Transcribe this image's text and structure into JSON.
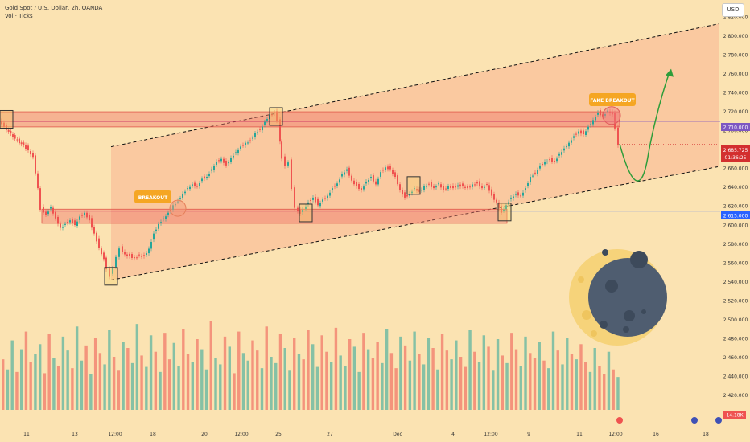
{
  "header": {
    "symbol_title": "Gold Spot / U.S. Dollar, 2h, OANDA",
    "indicator": "Vol · Ticks",
    "currency": "USD"
  },
  "annotations": {
    "breakout": "BREAKOUT",
    "fake_breakout": "FAKE BREAKOUT"
  },
  "price_markers": {
    "upper_level": "2,710.000",
    "lower_level": "2,615.000",
    "current_price": "2,685.725",
    "countdown": "01:36:25",
    "volume": "14.18K"
  },
  "colors": {
    "background": "#fbe3b2",
    "up_candle": "#26a69a",
    "down_candle": "#ef5350",
    "zone_fill": "#f8a88a",
    "resistance_line": "#c2185b",
    "upper_marker": "#7e57c2",
    "lower_marker": "#2962ff",
    "current_marker": "#d32f2f",
    "projection": "#2e9d3a"
  },
  "chart_data": {
    "type": "candlestick",
    "title": "Gold Spot / U.S. Dollar, 2h, OANDA",
    "y_ticks": [
      2820,
      2800,
      2780,
      2760,
      2740,
      2720,
      2700,
      2680,
      2660,
      2640,
      2620,
      2600,
      2580,
      2560,
      2540,
      2520,
      2500,
      2480,
      2460,
      2440,
      2420
    ],
    "ylim": [
      2409,
      2828
    ],
    "x_tick_labels": [
      "11",
      "13",
      "12:00",
      "18",
      "20",
      "12:00",
      "25",
      "27",
      "Dec",
      "4",
      "12:00",
      "9",
      "11",
      "12:00",
      "16",
      "18"
    ],
    "price_path": [
      [
        0,
        2712
      ],
      [
        6,
        2705
      ],
      [
        14,
        2697
      ],
      [
        22,
        2690
      ],
      [
        30,
        2685
      ],
      [
        36,
        2680
      ],
      [
        42,
        2673
      ],
      [
        48,
        2640
      ],
      [
        52,
        2618
      ],
      [
        58,
        2612
      ],
      [
        64,
        2620
      ],
      [
        70,
        2608
      ],
      [
        76,
        2598
      ],
      [
        82,
        2602
      ],
      [
        88,
        2606
      ],
      [
        94,
        2601
      ],
      [
        100,
        2610
      ],
      [
        106,
        2614
      ],
      [
        112,
        2606
      ],
      [
        118,
        2592
      ],
      [
        124,
        2577
      ],
      [
        130,
        2565
      ],
      [
        134,
        2555
      ],
      [
        138,
        2547
      ],
      [
        142,
        2556
      ],
      [
        146,
        2568
      ],
      [
        150,
        2577
      ],
      [
        156,
        2570
      ],
      [
        162,
        2568
      ],
      [
        168,
        2566
      ],
      [
        174,
        2569
      ],
      [
        180,
        2568
      ],
      [
        186,
        2576
      ],
      [
        192,
        2592
      ],
      [
        198,
        2602
      ],
      [
        204,
        2608
      ],
      [
        210,
        2614
      ],
      [
        216,
        2622
      ],
      [
        222,
        2626
      ],
      [
        228,
        2634
      ],
      [
        234,
        2640
      ],
      [
        240,
        2644
      ],
      [
        246,
        2642
      ],
      [
        252,
        2650
      ],
      [
        258,
        2652
      ],
      [
        264,
        2660
      ],
      [
        270,
        2668
      ],
      [
        276,
        2671
      ],
      [
        282,
        2664
      ],
      [
        288,
        2672
      ],
      [
        294,
        2678
      ],
      [
        300,
        2684
      ],
      [
        306,
        2688
      ],
      [
        312,
        2690
      ],
      [
        318,
        2698
      ],
      [
        324,
        2702
      ],
      [
        330,
        2710
      ],
      [
        336,
        2718
      ],
      [
        342,
        2719
      ],
      [
        346,
        2712
      ],
      [
        348,
        2690
      ],
      [
        352,
        2672
      ],
      [
        356,
        2664
      ],
      [
        360,
        2668
      ],
      [
        364,
        2640
      ],
      [
        368,
        2620
      ],
      [
        374,
        2613
      ],
      [
        378,
        2618
      ],
      [
        384,
        2625
      ],
      [
        390,
        2630
      ],
      [
        396,
        2622
      ],
      [
        402,
        2628
      ],
      [
        408,
        2632
      ],
      [
        414,
        2640
      ],
      [
        420,
        2645
      ],
      [
        426,
        2655
      ],
      [
        432,
        2660
      ],
      [
        438,
        2648
      ],
      [
        444,
        2642
      ],
      [
        450,
        2638
      ],
      [
        456,
        2647
      ],
      [
        462,
        2652
      ],
      [
        468,
        2644
      ],
      [
        474,
        2657
      ],
      [
        480,
        2662
      ],
      [
        486,
        2660
      ],
      [
        492,
        2652
      ],
      [
        498,
        2638
      ],
      [
        504,
        2630
      ],
      [
        510,
        2634
      ],
      [
        516,
        2640
      ],
      [
        522,
        2636
      ],
      [
        528,
        2642
      ],
      [
        534,
        2644
      ],
      [
        540,
        2640
      ],
      [
        546,
        2645
      ],
      [
        552,
        2638
      ],
      [
        558,
        2642
      ],
      [
        564,
        2640
      ],
      [
        570,
        2643
      ],
      [
        576,
        2642
      ],
      [
        582,
        2640
      ],
      [
        588,
        2644
      ],
      [
        594,
        2645
      ],
      [
        600,
        2640
      ],
      [
        606,
        2644
      ],
      [
        612,
        2632
      ],
      [
        618,
        2625
      ],
      [
        624,
        2614
      ],
      [
        630,
        2622
      ],
      [
        636,
        2630
      ],
      [
        642,
        2634
      ],
      [
        648,
        2632
      ],
      [
        654,
        2640
      ],
      [
        660,
        2652
      ],
      [
        666,
        2656
      ],
      [
        672,
        2664
      ],
      [
        678,
        2668
      ],
      [
        684,
        2670
      ],
      [
        690,
        2668
      ],
      [
        696,
        2676
      ],
      [
        702,
        2682
      ],
      [
        708,
        2688
      ],
      [
        714,
        2695
      ],
      [
        720,
        2700
      ],
      [
        726,
        2697
      ],
      [
        732,
        2705
      ],
      [
        738,
        2712
      ],
      [
        744,
        2720
      ],
      [
        750,
        2716
      ],
      [
        756,
        2722
      ],
      [
        762,
        2718
      ],
      [
        766,
        2704
      ],
      [
        770,
        2686
      ]
    ],
    "volume": [
      40,
      32,
      55,
      30,
      48,
      62,
      38,
      44,
      52,
      29,
      60,
      41,
      35,
      58,
      47,
      33,
      66,
      39,
      51,
      28,
      57,
      45,
      36,
      63,
      42,
      31,
      54,
      49,
      37,
      68,
      43,
      34,
      59,
      46,
      30,
      61,
      40,
      53,
      35,
      64,
      44,
      38,
      56,
      48,
      32,
      70,
      41,
      36,
      58,
      50,
      29,
      62,
      45,
      39,
      55,
      47,
      33,
      66,
      42,
      37,
      60,
      49,
      31,
      57,
      44,
      40,
      63,
      52,
      34,
      59,
      46,
      38,
      65,
      43,
      35,
      56,
      50,
      30,
      61,
      48,
      41,
      54,
      37,
      64,
      45,
      33,
      58,
      51,
      39,
      62,
      44,
      36,
      57,
      49,
      32,
      60,
      47,
      40,
      55,
      42,
      34,
      63,
      46,
      38,
      59,
      50,
      31,
      56,
      43,
      37,
      61,
      48,
      35,
      58,
      45,
      41,
      54,
      39,
      33,
      62,
      47,
      36,
      57,
      44,
      40,
      52,
      38,
      30,
      49,
      35,
      28,
      46,
      32,
      26
    ],
    "levels": [
      {
        "label": "2,710.000",
        "price": 2710
      },
      {
        "label": "2,615.000",
        "price": 2615
      }
    ],
    "zones": [
      {
        "price_from": 2704,
        "price_to": 2720,
        "x_from": 0,
        "x_to": 770
      },
      {
        "price_from": 2602,
        "price_to": 2617,
        "x_from": 52,
        "x_to": 630
      }
    ],
    "channel": {
      "upper": [
        [
          138,
          2683
        ],
        [
          893,
          2813
        ]
      ],
      "lower": [
        [
          138,
          2542
        ],
        [
          893,
          2662
        ]
      ]
    },
    "highlight_boxes": [
      {
        "x": 8,
        "price": 2712
      },
      {
        "x": 138,
        "price": 2546
      },
      {
        "x": 343,
        "price": 2715
      },
      {
        "x": 380,
        "price": 2613
      },
      {
        "x": 514,
        "price": 2642
      },
      {
        "x": 627,
        "price": 2614
      }
    ],
    "breakout_marker": {
      "x": 221,
      "price": 2618
    },
    "fake_breakout_marker": {
      "x": 760,
      "price": 2716
    },
    "projection_path": [
      [
        770,
        2686
      ],
      [
        790,
        2662
      ],
      [
        805,
        2672
      ],
      [
        815,
        2700
      ],
      [
        825,
        2745
      ],
      [
        832,
        2762
      ]
    ]
  }
}
